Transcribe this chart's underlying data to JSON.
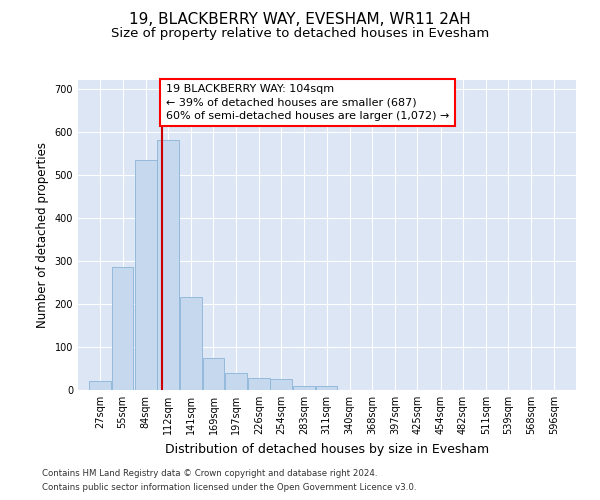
{
  "title": "19, BLACKBERRY WAY, EVESHAM, WR11 2AH",
  "subtitle": "Size of property relative to detached houses in Evesham",
  "xlabel": "Distribution of detached houses by size in Evesham",
  "ylabel": "Number of detached properties",
  "footnote1": "Contains HM Land Registry data © Crown copyright and database right 2024.",
  "footnote2": "Contains public sector information licensed under the Open Government Licence v3.0.",
  "annotation_line1": "19 BLACKBERRY WAY: 104sqm",
  "annotation_line2": "← 39% of detached houses are smaller (687)",
  "annotation_line3": "60% of semi-detached houses are larger (1,072) →",
  "bar_color": "#c5d8ee",
  "bar_edge_color": "#8ab4d8",
  "ref_line_color": "#cc0000",
  "ref_line_x": 104,
  "background_color": "#dce6f5",
  "categories": [
    27,
    55,
    84,
    112,
    141,
    169,
    197,
    226,
    254,
    283,
    311,
    340,
    368,
    397,
    425,
    454,
    482,
    511,
    539,
    568,
    596
  ],
  "bar_heights": [
    20,
    285,
    535,
    580,
    215,
    75,
    40,
    28,
    25,
    10,
    10,
    0,
    0,
    0,
    0,
    0,
    0,
    0,
    0,
    0,
    0
  ],
  "ylim": [
    0,
    720
  ],
  "yticks": [
    0,
    100,
    200,
    300,
    400,
    500,
    600,
    700
  ],
  "bin_width": 28,
  "title_fontsize": 11,
  "subtitle_fontsize": 9.5,
  "tick_fontsize": 7,
  "xlabel_fontsize": 9,
  "ylabel_fontsize": 8.5,
  "annotation_fontsize": 8,
  "footnote_fontsize": 6.2
}
